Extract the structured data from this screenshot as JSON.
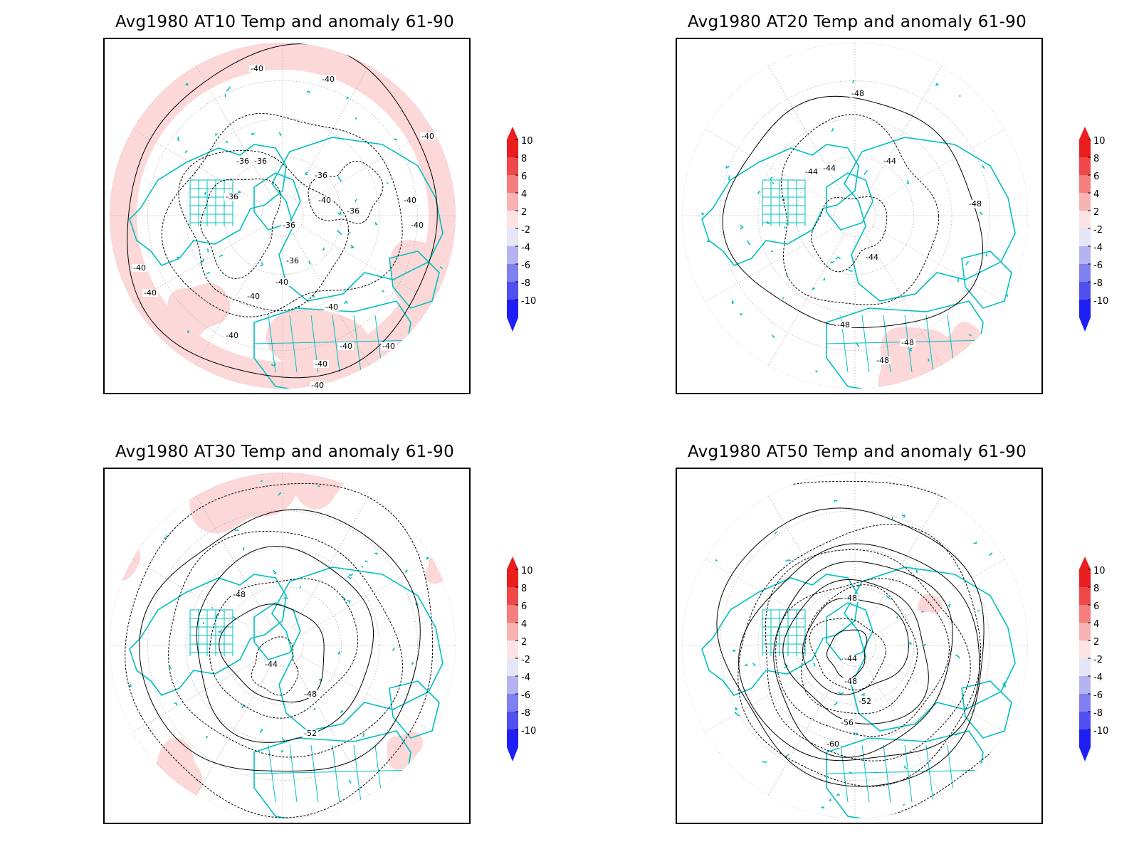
{
  "colors": {
    "land_outline": "#00c0c0",
    "contour": "#000000",
    "grid": "#b0b0b0",
    "anomaly_warm": "#fcd8d8",
    "colorbar": [
      "#1f1ff5",
      "#5050f0",
      "#8080f0",
      "#b4b4f2",
      "#e6e6f8",
      "#ffffff",
      "#fde3e3",
      "#fab3b3",
      "#f57e7e",
      "#f04848",
      "#ea1e1e"
    ]
  },
  "colorbar": {
    "levels": [
      "10",
      "8",
      "6",
      "4",
      "2",
      "-2",
      "-4",
      "-6",
      "-8",
      "-10"
    ]
  },
  "panels": [
    {
      "title": "Avg1980 AT10 Temp and anomaly 61-90",
      "contour_labels": [
        "-40",
        "-40",
        "-40",
        "-36",
        "-36",
        "-36",
        "-36",
        "-40",
        "-40",
        "-40",
        "-36",
        "-40",
        "-36",
        "-40",
        "-40",
        "-40",
        "-40",
        "-40",
        "-40",
        "-40",
        "-40",
        "-40",
        "-36"
      ]
    },
    {
      "title": "Avg1980 AT20 Temp and anomaly 61-90",
      "contour_labels": [
        "-48",
        "-44",
        "-44",
        "-44",
        "-48",
        "-44",
        "-48",
        "-48",
        "-48"
      ]
    },
    {
      "title": "Avg1980 AT30 Temp and anomaly 61-90",
      "contour_labels": [
        "-48",
        "-44",
        "-48",
        "-52"
      ]
    },
    {
      "title": "Avg1980 AT50 Temp and anomaly 61-90",
      "contour_labels": [
        "-48",
        "-44",
        "-48",
        "-52",
        "-56",
        "-60"
      ]
    }
  ]
}
